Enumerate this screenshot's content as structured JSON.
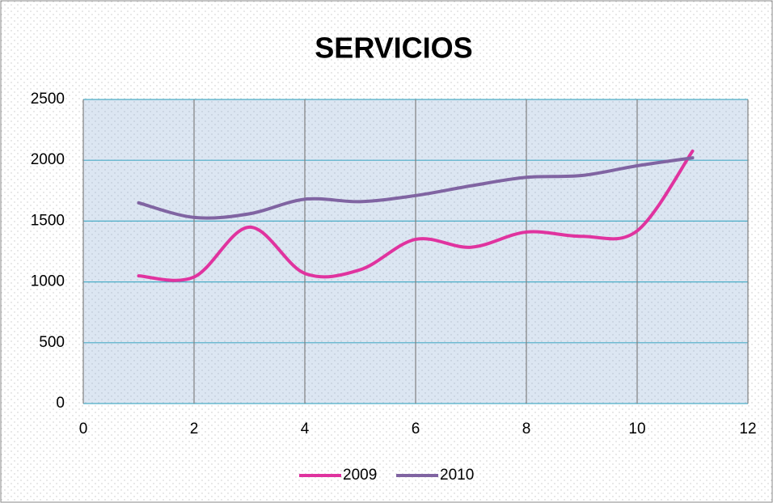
{
  "chart_data": {
    "type": "line",
    "title": "SERVICIOS",
    "x": [
      1,
      2,
      3,
      4,
      5,
      6,
      7,
      8,
      9,
      10,
      11
    ],
    "series": [
      {
        "name": "2009",
        "color": "#e0339f",
        "values": [
          1050,
          1040,
          1450,
          1070,
          1100,
          1350,
          1285,
          1410,
          1375,
          1420,
          2075
        ]
      },
      {
        "name": "2010",
        "color": "#8064a2",
        "values": [
          1650,
          1530,
          1560,
          1680,
          1660,
          1710,
          1790,
          1860,
          1875,
          1955,
          2020
        ]
      }
    ],
    "xlim": [
      0,
      12
    ],
    "xticks": [
      0,
      2,
      4,
      6,
      8,
      10,
      12
    ],
    "ylim": [
      0,
      2500
    ],
    "yticks": [
      0,
      500,
      1000,
      1500,
      2000,
      2500
    ],
    "grid": true,
    "smooth": true,
    "legend": "bottom"
  }
}
